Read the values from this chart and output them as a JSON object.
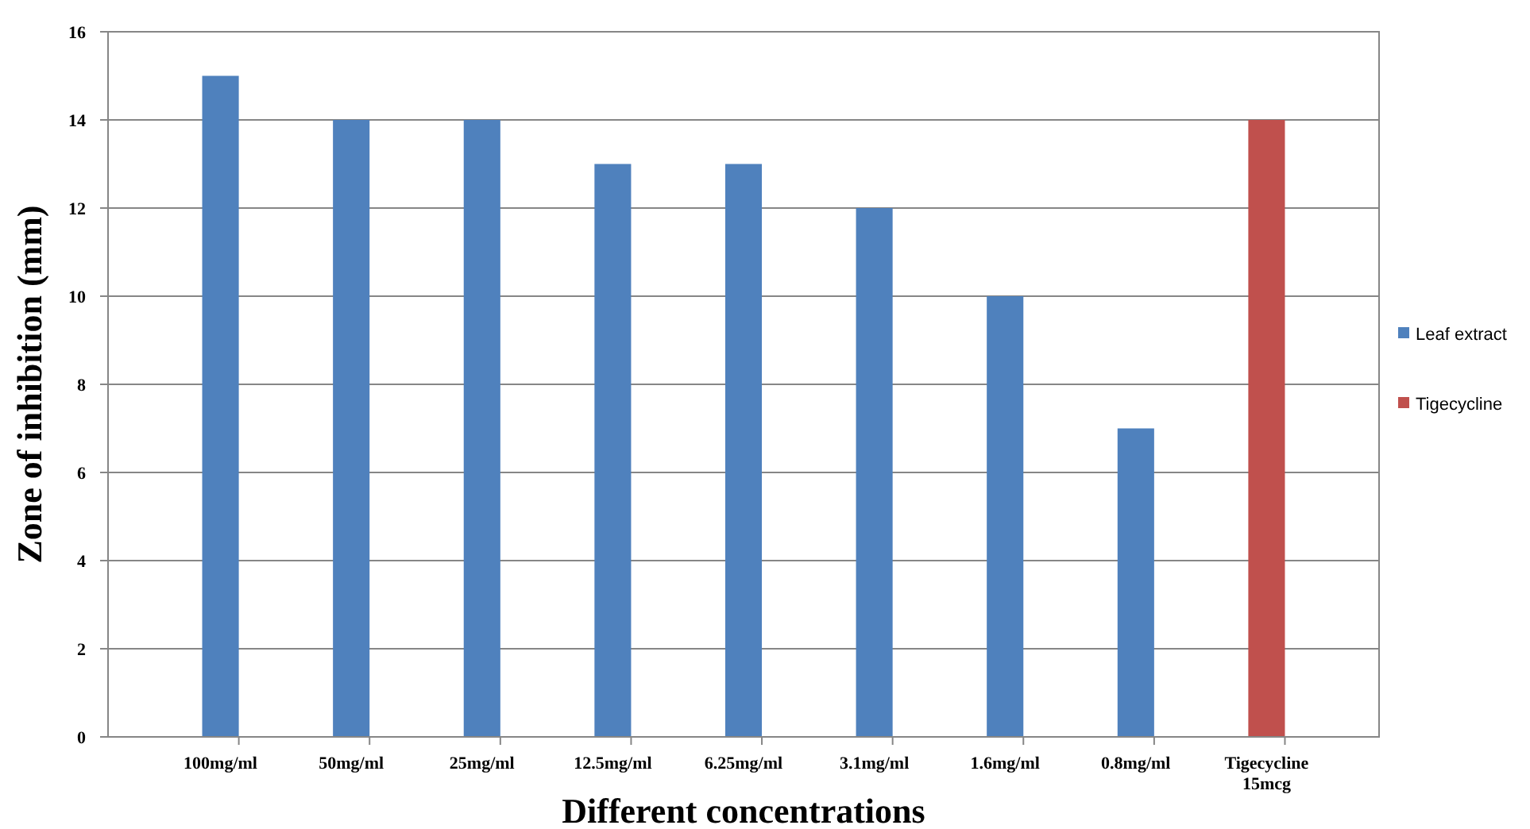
{
  "chart_data": {
    "type": "bar",
    "stacked": true,
    "xlabel": "Different concentrations",
    "ylabel": "Zone of inhibition (mm)",
    "categories": [
      "100mg/ml",
      "50mg/ml",
      "25mg/ml",
      "12.5mg/ml",
      "6.25mg/ml",
      "3.1mg/ml",
      "1.6mg/ml",
      "0.8mg/ml",
      "Tigecycline\n15mcg"
    ],
    "series": [
      {
        "name": "Leaf extract",
        "color": "#4f81bd",
        "values": [
          15,
          14,
          14,
          13,
          13,
          12,
          10,
          7,
          null
        ]
      },
      {
        "name": "Tigecycline",
        "color": "#c0504d",
        "values": [
          null,
          null,
          null,
          null,
          null,
          null,
          null,
          null,
          14
        ]
      }
    ],
    "ylim": [
      0,
      16
    ],
    "yticks": [
      0,
      2,
      4,
      6,
      8,
      10,
      12,
      14,
      16
    ],
    "grid": "y",
    "legend": "right"
  }
}
